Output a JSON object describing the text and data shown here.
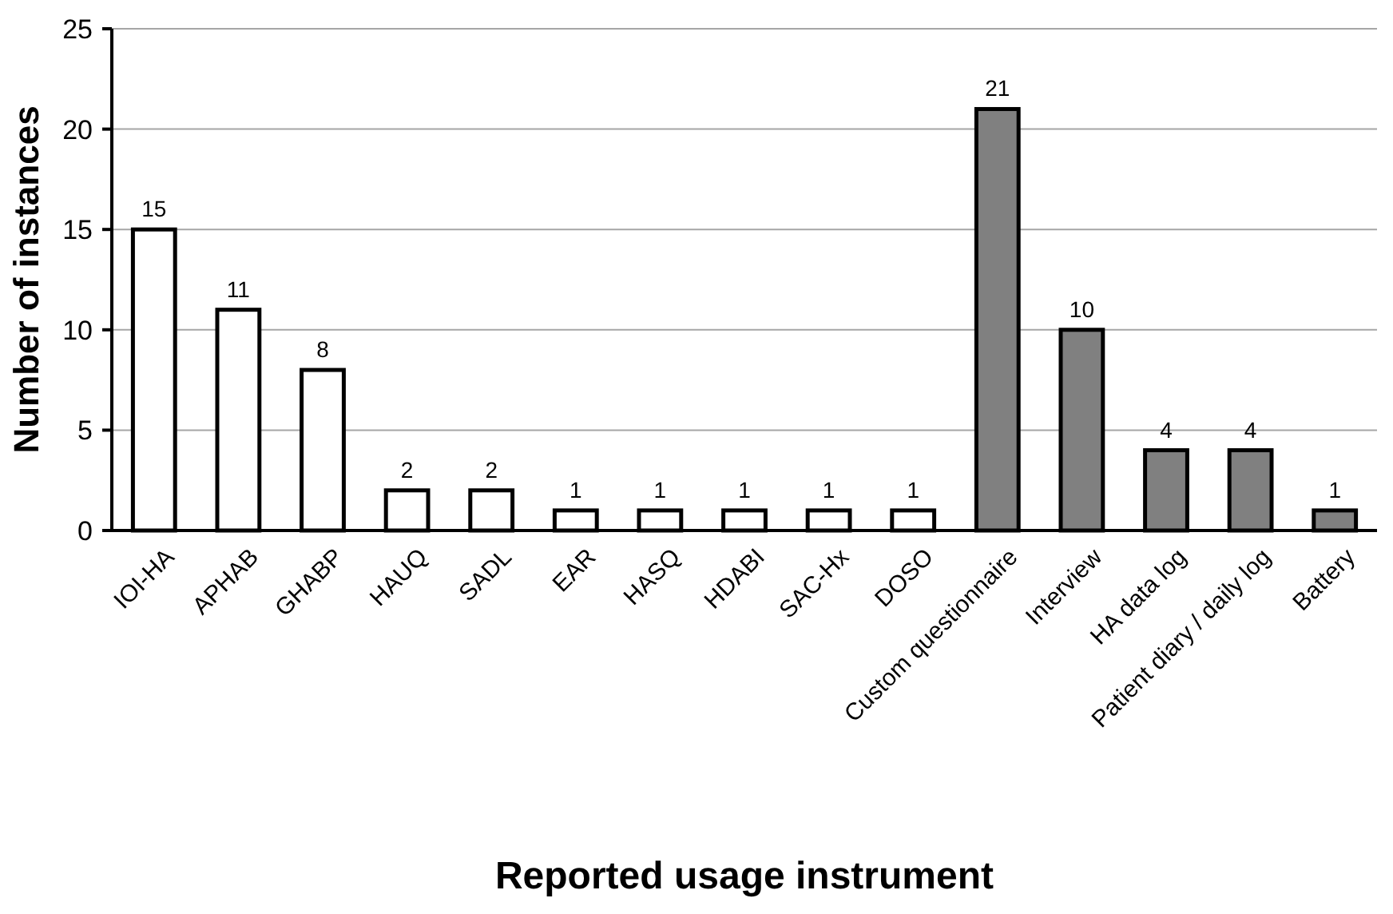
{
  "chart_data": {
    "type": "bar",
    "xlabel": "Reported usage instrument",
    "ylabel": "Number of instances",
    "categories": [
      "IOI-HA",
      "APHAB",
      "GHABP",
      "HAUQ",
      "SADL",
      "EAR",
      "HASQ",
      "HDABI",
      "SAC-Hx",
      "DOSO",
      "Custom questionnaire",
      "Interview",
      "HA data log",
      "Patient diary / daily log",
      "Battery"
    ],
    "values": [
      15,
      11,
      8,
      2,
      2,
      1,
      1,
      1,
      1,
      1,
      21,
      10,
      4,
      4,
      1
    ],
    "colors": [
      "#ffffff",
      "#ffffff",
      "#ffffff",
      "#ffffff",
      "#ffffff",
      "#ffffff",
      "#ffffff",
      "#ffffff",
      "#ffffff",
      "#ffffff",
      "#808080",
      "#808080",
      "#808080",
      "#808080",
      "#808080"
    ],
    "ylim": [
      0,
      25
    ],
    "yticks": [
      0,
      5,
      10,
      15,
      20,
      25
    ],
    "grid": "y",
    "data_labels": true
  }
}
